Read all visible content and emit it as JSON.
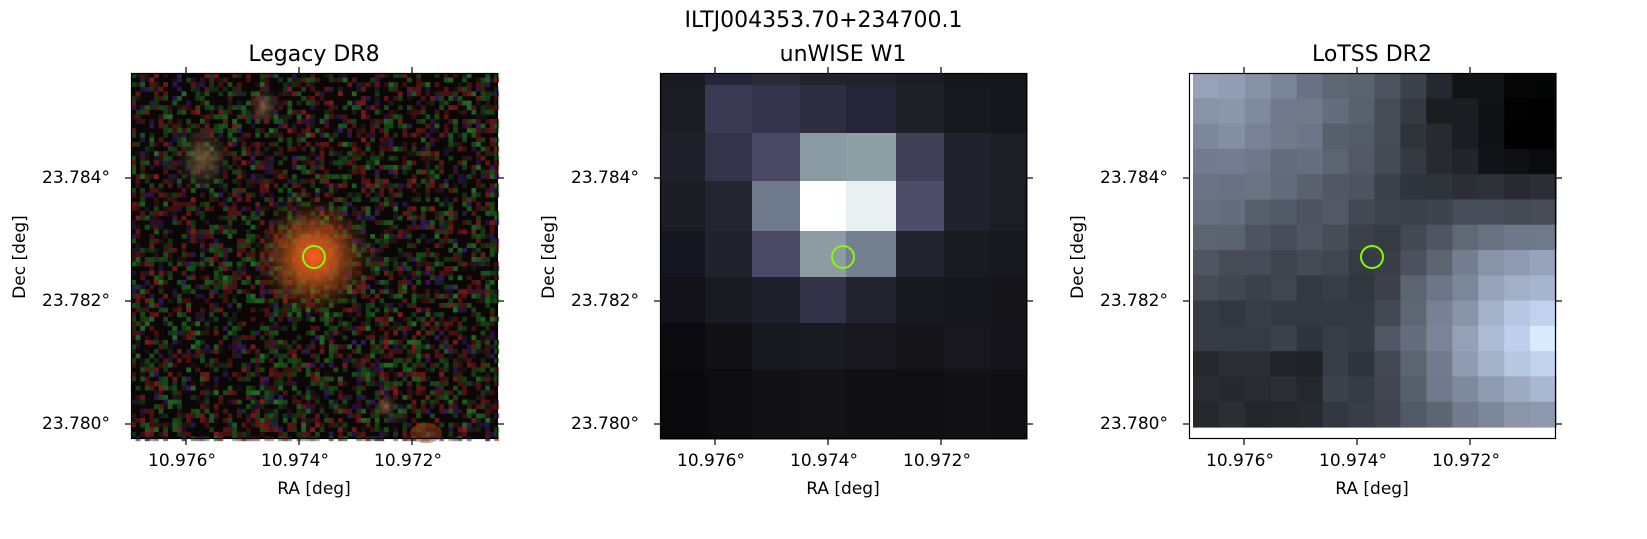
{
  "figure": {
    "title": "ILTJ004353.70+234700.1",
    "panels": [
      {
        "title": "Legacy DR8",
        "xlabel": "RA [deg]",
        "ylabel": "Dec [deg]",
        "xticks": [
          "10.976°",
          "10.974°",
          "10.972°"
        ],
        "yticks": [
          "23.784°",
          "23.782°",
          "23.780°"
        ],
        "image": "optical-rgb"
      },
      {
        "title": "unWISE W1",
        "xlabel": "RA [deg]",
        "ylabel": "Dec [deg]",
        "xticks": [
          "10.976°",
          "10.974°",
          "10.972°"
        ],
        "yticks": [
          "23.784°",
          "23.782°",
          "23.780°"
        ],
        "image": "infrared-grey"
      },
      {
        "title": "LoTSS DR2",
        "xlabel": "RA [deg]",
        "ylabel": "Dec [deg]",
        "xticks": [
          "10.976°",
          "10.974°",
          "10.972°"
        ],
        "yticks": [
          "23.784°",
          "23.782°",
          "23.780°"
        ],
        "image": "radio-bone"
      }
    ],
    "marker_color": "#7fff00"
  }
}
